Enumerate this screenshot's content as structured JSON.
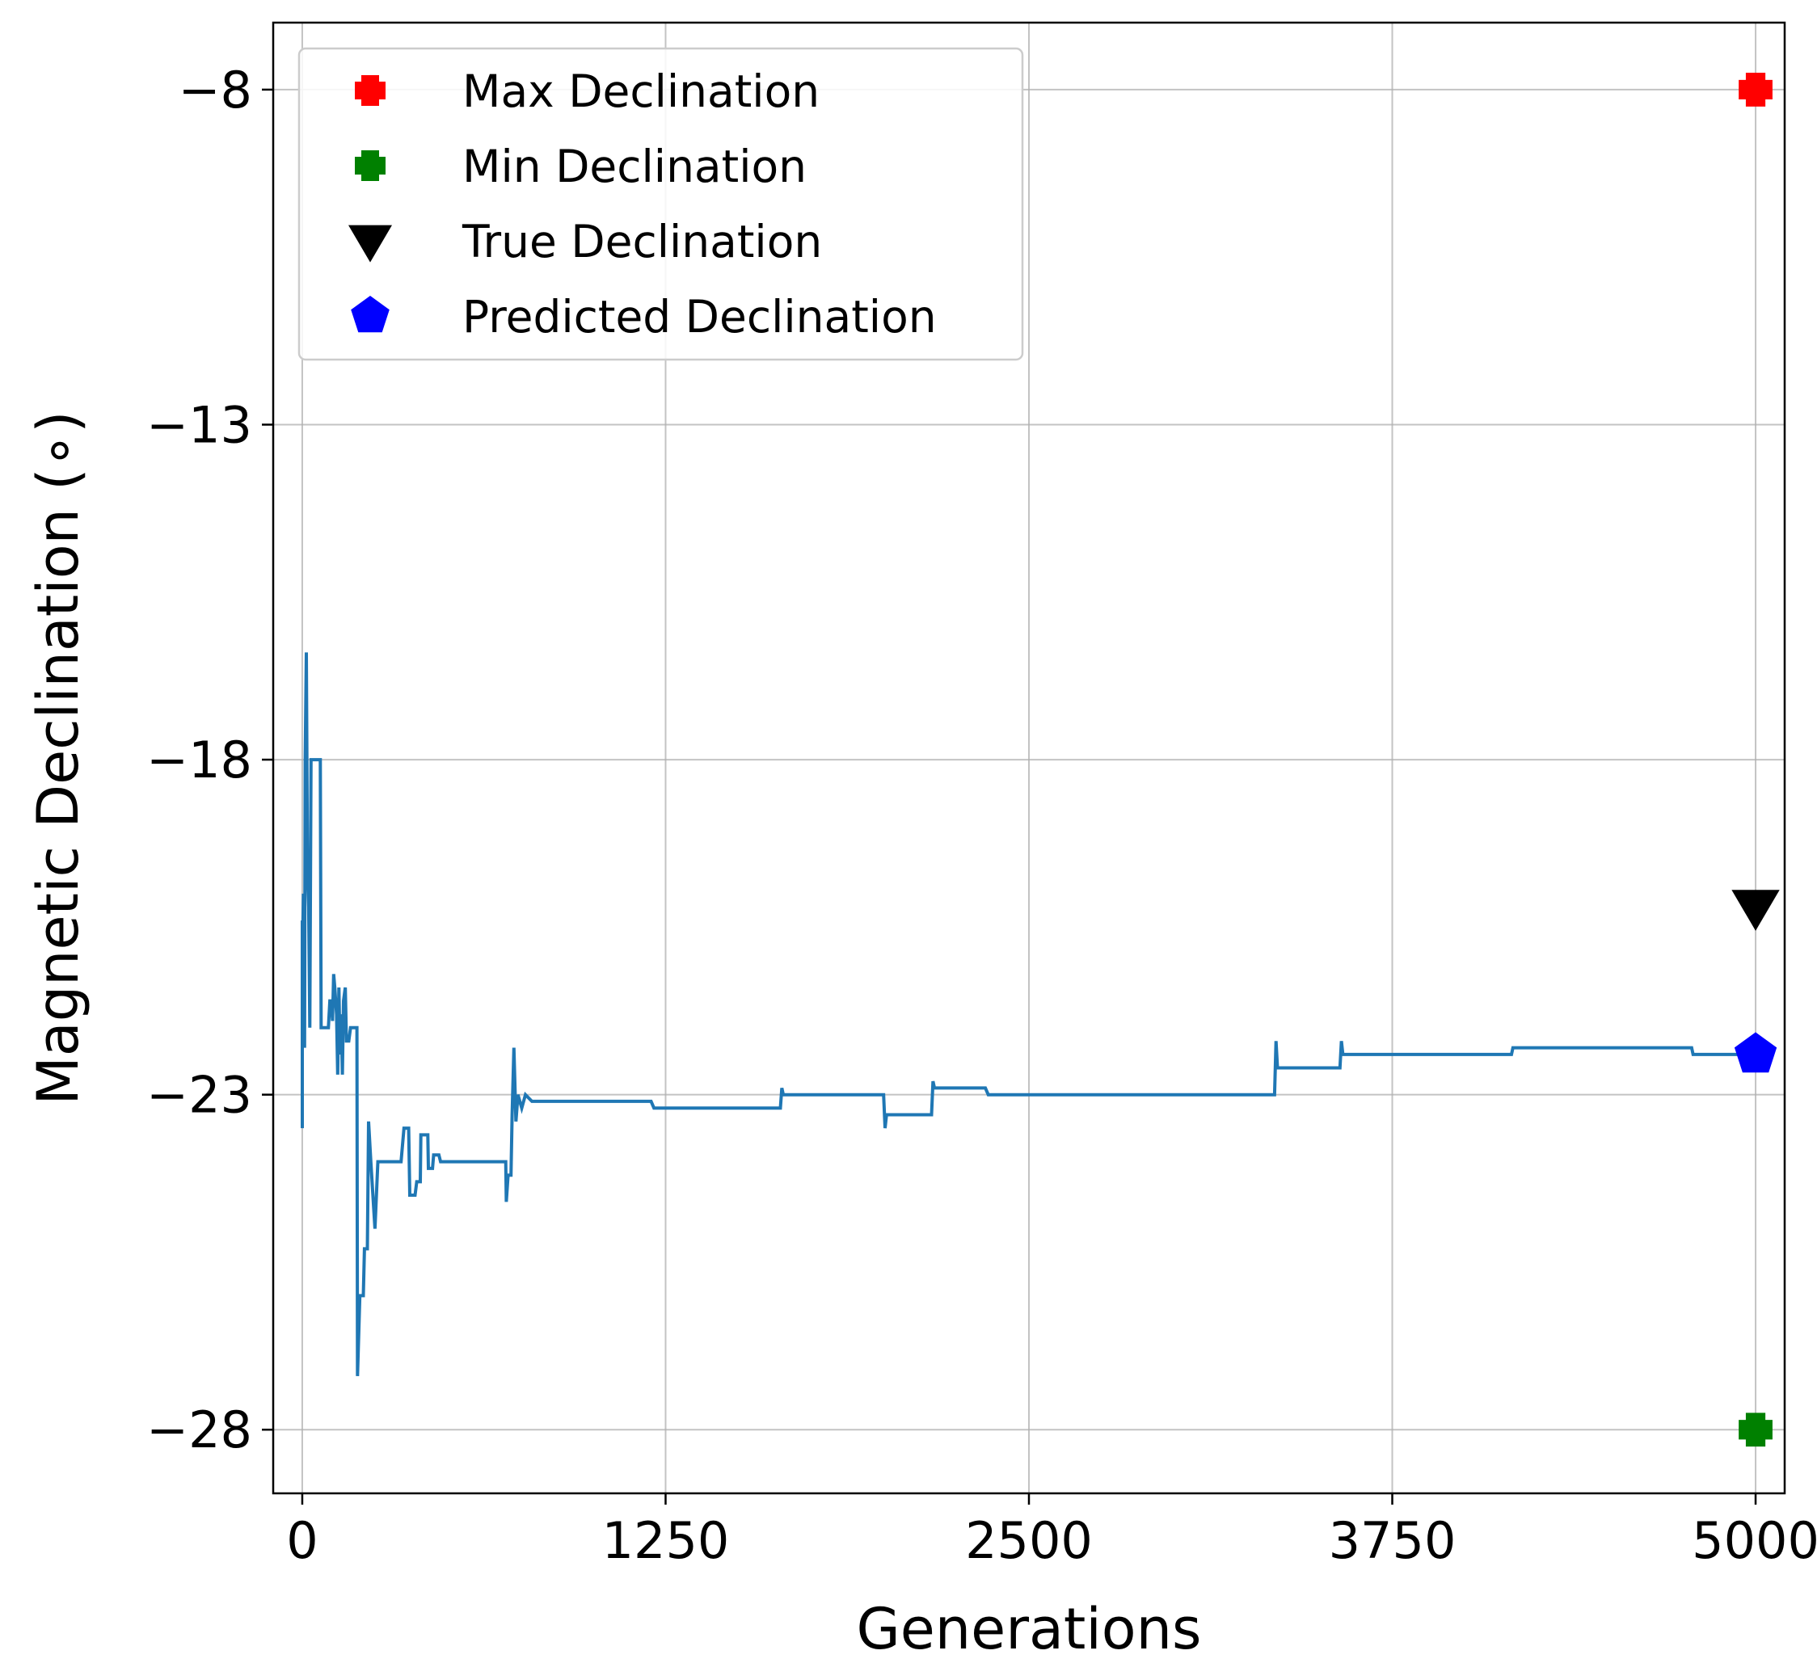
{
  "chart_data": {
    "type": "line",
    "xlabel": "Generations",
    "ylabel": "Magnetic Declination (∘)",
    "xlim": [
      -100,
      5100
    ],
    "ylim": [
      -28.95,
      -7.0
    ],
    "xticks": [
      0,
      1250,
      2500,
      3750,
      5000
    ],
    "xtick_labels": [
      "0",
      "1250",
      "2500",
      "3750",
      "5000"
    ],
    "yticks": [
      -8,
      -13,
      -18,
      -23,
      -28
    ],
    "ytick_labels": [
      "−8",
      "−13",
      "−18",
      "−23",
      "−28"
    ],
    "grid": true,
    "legend_position": "upper-left",
    "line_color": "#1f77b4",
    "series": [
      {
        "values_xy": [
          [
            0,
            -23.5
          ],
          [
            0,
            -20.4
          ],
          [
            2,
            -20.5
          ],
          [
            4,
            -20.0
          ],
          [
            6,
            -21.2
          ],
          [
            8,
            -22.3
          ],
          [
            10,
            -18.0
          ],
          [
            14,
            -16.4
          ],
          [
            18,
            -19.6
          ],
          [
            22,
            -20.2
          ],
          [
            26,
            -22.0
          ],
          [
            30,
            -18.0
          ],
          [
            45,
            -18.0
          ],
          [
            55,
            -18.0
          ],
          [
            62,
            -18.0
          ],
          [
            65,
            -22.0
          ],
          [
            90,
            -22.0
          ],
          [
            95,
            -21.6
          ],
          [
            100,
            -21.6
          ],
          [
            104,
            -21.9
          ],
          [
            108,
            -21.2
          ],
          [
            112,
            -21.4
          ],
          [
            118,
            -21.8
          ],
          [
            122,
            -22.7
          ],
          [
            126,
            -21.4
          ],
          [
            130,
            -22.4
          ],
          [
            134,
            -21.8
          ],
          [
            138,
            -22.7
          ],
          [
            142,
            -21.6
          ],
          [
            148,
            -21.4
          ],
          [
            152,
            -22.2
          ],
          [
            160,
            -22.2
          ],
          [
            166,
            -22.0
          ],
          [
            182,
            -22.0
          ],
          [
            188,
            -22.0
          ],
          [
            190,
            -27.2
          ],
          [
            198,
            -26.0
          ],
          [
            210,
            -26.0
          ],
          [
            214,
            -25.3
          ],
          [
            224,
            -25.3
          ],
          [
            228,
            -23.4
          ],
          [
            236,
            -24.0
          ],
          [
            250,
            -25.0
          ],
          [
            260,
            -24.0
          ],
          [
            300,
            -24.0
          ],
          [
            340,
            -24.0
          ],
          [
            350,
            -23.5
          ],
          [
            366,
            -23.5
          ],
          [
            370,
            -24.5
          ],
          [
            388,
            -24.5
          ],
          [
            394,
            -24.3
          ],
          [
            406,
            -24.3
          ],
          [
            408,
            -23.6
          ],
          [
            432,
            -23.6
          ],
          [
            434,
            -24.1
          ],
          [
            448,
            -24.1
          ],
          [
            452,
            -23.9
          ],
          [
            470,
            -23.9
          ],
          [
            476,
            -24.0
          ],
          [
            555,
            -24.0
          ],
          [
            660,
            -24.0
          ],
          [
            700,
            -24.0
          ],
          [
            702,
            -24.6
          ],
          [
            708,
            -24.2
          ],
          [
            718,
            -24.2
          ],
          [
            722,
            -23.3
          ],
          [
            728,
            -22.3
          ],
          [
            735,
            -23.4
          ],
          [
            742,
            -23.0
          ],
          [
            755,
            -23.2
          ],
          [
            768,
            -23.0
          ],
          [
            790,
            -23.1
          ],
          [
            830,
            -23.1
          ],
          [
            880,
            -23.1
          ],
          [
            1000,
            -23.1
          ],
          [
            1200,
            -23.1
          ],
          [
            1210,
            -23.2
          ],
          [
            1450,
            -23.2
          ],
          [
            1645,
            -23.2
          ],
          [
            1650,
            -22.9
          ],
          [
            1655,
            -23.0
          ],
          [
            1700,
            -23.0
          ],
          [
            1800,
            -23.0
          ],
          [
            2000,
            -23.0
          ],
          [
            2005,
            -23.5
          ],
          [
            2010,
            -23.3
          ],
          [
            2060,
            -23.3
          ],
          [
            2165,
            -23.3
          ],
          [
            2170,
            -22.8
          ],
          [
            2175,
            -22.9
          ],
          [
            2250,
            -22.9
          ],
          [
            2350,
            -22.9
          ],
          [
            2360,
            -23.0
          ],
          [
            2500,
            -23.0
          ],
          [
            2800,
            -23.0
          ],
          [
            3000,
            -23.0
          ],
          [
            3200,
            -23.0
          ],
          [
            3345,
            -23.0
          ],
          [
            3350,
            -22.2
          ],
          [
            3355,
            -22.6
          ],
          [
            3500,
            -22.6
          ],
          [
            3570,
            -22.6
          ],
          [
            3575,
            -22.2
          ],
          [
            3580,
            -22.4
          ],
          [
            3800,
            -22.4
          ],
          [
            4000,
            -22.4
          ],
          [
            4160,
            -22.4
          ],
          [
            4165,
            -22.3
          ],
          [
            4500,
            -22.3
          ],
          [
            4700,
            -22.3
          ],
          [
            4780,
            -22.3
          ],
          [
            4785,
            -22.4
          ],
          [
            5000,
            -22.4
          ]
        ]
      }
    ],
    "markers": [
      {
        "label": "Max Declination",
        "x": 5000,
        "y": -8.0,
        "shape": "plus",
        "color": "#ff0000"
      },
      {
        "label": "Min Declination",
        "x": 5000,
        "y": -28.0,
        "shape": "plus",
        "color": "#008000"
      },
      {
        "label": "True Declination",
        "x": 5000,
        "y": -20.2,
        "shape": "triangle-down",
        "color": "#000000"
      },
      {
        "label": "Predicted Declination",
        "x": 5000,
        "y": -22.4,
        "shape": "pentagon",
        "color": "#0000ff"
      }
    ],
    "legend": [
      {
        "label": "Max Declination",
        "shape": "plus",
        "color": "#ff0000"
      },
      {
        "label": "Min Declination",
        "shape": "plus",
        "color": "#008000"
      },
      {
        "label": "True Declination",
        "shape": "triangle-down",
        "color": "#000000"
      },
      {
        "label": "Predicted Declination",
        "shape": "pentagon",
        "color": "#0000ff"
      }
    ]
  }
}
